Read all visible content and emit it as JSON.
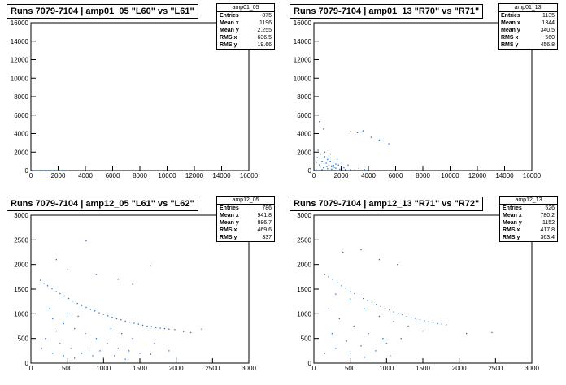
{
  "pads": [
    {
      "title": "Runs 7079-7104 | amp01_05 \"L60\" vs \"L61\"",
      "stats": {
        "name": "amp01_05",
        "rows": [
          {
            "label": "Entries",
            "value": "875"
          },
          {
            "label": "Mean x",
            "value": "1196"
          },
          {
            "label": "Mean y",
            "value": "2.255"
          },
          {
            "label": "RMS x",
            "value": "636.5"
          },
          {
            "label": "RMS y",
            "value": "19.66"
          }
        ]
      }
    },
    {
      "title": "Runs 7079-7104 | amp01_13 \"R70\" vs \"R71\"",
      "stats": {
        "name": "amp01_13",
        "rows": [
          {
            "label": "Entries",
            "value": "1135"
          },
          {
            "label": "Mean x",
            "value": "1344"
          },
          {
            "label": "Mean y",
            "value": "340.5"
          },
          {
            "label": "RMS x",
            "value": "560"
          },
          {
            "label": "RMS y",
            "value": "456.8"
          }
        ]
      }
    },
    {
      "title": "Runs 7079-7104 | amp12_05 \"L61\" vs \"L62\"",
      "stats": {
        "name": "amp12_05",
        "rows": [
          {
            "label": "Entries",
            "value": "786"
          },
          {
            "label": "Mean x",
            "value": "941.8"
          },
          {
            "label": "Mean y",
            "value": "886.7"
          },
          {
            "label": "RMS x",
            "value": "469.6"
          },
          {
            "label": "RMS y",
            "value": "337"
          }
        ]
      }
    },
    {
      "title": "Runs 7079-7104 | amp12_13 \"R71\" vs \"R72\"",
      "stats": {
        "name": "amp12_13",
        "rows": [
          {
            "label": "Entries",
            "value": "526"
          },
          {
            "label": "Mean x",
            "value": "780.2"
          },
          {
            "label": "Mean y",
            "value": "1152"
          },
          {
            "label": "RMS x",
            "value": "417.8"
          },
          {
            "label": "RMS y",
            "value": "363.4"
          }
        ]
      }
    }
  ],
  "chart_data": [
    {
      "type": "scatter",
      "title": "Runs 7079-7104 | amp01_05 \"L60\" vs \"L61\"",
      "xlim": [
        0,
        16000
      ],
      "ylim": [
        0,
        16000
      ],
      "xticks": [
        0,
        2000,
        4000,
        6000,
        8000,
        10000,
        12000,
        14000,
        16000
      ],
      "yticks": [
        0,
        2000,
        4000,
        6000,
        8000,
        10000,
        12000,
        14000,
        16000
      ],
      "marker_color": "#1f6fd0",
      "points": [
        [
          150,
          2
        ],
        [
          300,
          5
        ],
        [
          450,
          1
        ],
        [
          600,
          3
        ],
        [
          800,
          2
        ],
        [
          950,
          4
        ],
        [
          1100,
          0
        ],
        [
          1250,
          6
        ],
        [
          1400,
          3
        ],
        [
          1550,
          1
        ],
        [
          1700,
          5
        ],
        [
          1850,
          2
        ],
        [
          2000,
          4
        ],
        [
          2200,
          1
        ],
        [
          2400,
          3
        ],
        [
          2700,
          2
        ]
      ]
    },
    {
      "type": "scatter",
      "title": "Runs 7079-7104 | amp01_13 \"R70\" vs \"R71\"",
      "xlim": [
        0,
        16000
      ],
      "ylim": [
        0,
        16000
      ],
      "xticks": [
        0,
        2000,
        4000,
        6000,
        8000,
        10000,
        12000,
        14000,
        16000
      ],
      "yticks": [
        0,
        2000,
        4000,
        6000,
        8000,
        10000,
        12000,
        14000,
        16000
      ],
      "marker_color": "#1f6fd0",
      "points": [
        [
          400,
          5300
        ],
        [
          700,
          4500
        ],
        [
          2700,
          4200
        ],
        [
          3200,
          4100
        ],
        [
          3600,
          4300
        ],
        [
          4200,
          3600
        ],
        [
          5500,
          2900
        ],
        [
          4800,
          3300
        ],
        [
          300,
          2200
        ],
        [
          500,
          1800
        ],
        [
          800,
          1500
        ],
        [
          1000,
          1200
        ],
        [
          1200,
          1000
        ],
        [
          1400,
          900
        ],
        [
          1600,
          700
        ],
        [
          1800,
          600
        ],
        [
          2000,
          400
        ],
        [
          2200,
          300
        ],
        [
          600,
          1000
        ],
        [
          900,
          800
        ],
        [
          1100,
          600
        ],
        [
          1300,
          500
        ],
        [
          1500,
          350
        ],
        [
          700,
          300
        ],
        [
          1000,
          200
        ],
        [
          1300,
          150
        ],
        [
          1600,
          250
        ],
        [
          1900,
          150
        ],
        [
          2300,
          100
        ],
        [
          2700,
          80
        ],
        [
          3000,
          50
        ],
        [
          400,
          600
        ],
        [
          200,
          900
        ],
        [
          250,
          1400
        ],
        [
          1100,
          1600
        ],
        [
          2500,
          600
        ],
        [
          3300,
          250
        ],
        [
          3700,
          120
        ],
        [
          1700,
          1200
        ],
        [
          800,
          2000
        ],
        [
          1200,
          1800
        ],
        [
          500,
          400
        ],
        [
          150,
          150
        ],
        [
          600,
          100
        ],
        [
          950,
          450
        ],
        [
          1450,
          550
        ],
        [
          2050,
          800
        ]
      ]
    },
    {
      "type": "scatter",
      "title": "Runs 7079-7104 | amp12_05 \"L61\" vs \"L62\"",
      "xlim": [
        0,
        3000
      ],
      "ylim": [
        0,
        3000
      ],
      "xticks": [
        0,
        500,
        1000,
        1500,
        2000,
        2500,
        3000
      ],
      "yticks": [
        0,
        500,
        1000,
        1500,
        2000,
        2500,
        3000
      ],
      "marker_color": "#1f6fd0",
      "points": [
        [
          130,
          1680
        ],
        [
          180,
          1620
        ],
        [
          230,
          1570
        ],
        [
          290,
          1510
        ],
        [
          350,
          1450
        ],
        [
          400,
          1410
        ],
        [
          460,
          1360
        ],
        [
          520,
          1310
        ],
        [
          580,
          1260
        ],
        [
          640,
          1210
        ],
        [
          700,
          1170
        ],
        [
          760,
          1130
        ],
        [
          820,
          1090
        ],
        [
          880,
          1060
        ],
        [
          940,
          1020
        ],
        [
          1000,
          990
        ],
        [
          1060,
          960
        ],
        [
          1120,
          930
        ],
        [
          1180,
          900
        ],
        [
          1240,
          880
        ],
        [
          1300,
          850
        ],
        [
          1360,
          830
        ],
        [
          1420,
          810
        ],
        [
          1480,
          790
        ],
        [
          1540,
          770
        ],
        [
          1600,
          750
        ],
        [
          1660,
          740
        ],
        [
          1720,
          720
        ],
        [
          1780,
          710
        ],
        [
          1840,
          700
        ],
        [
          1900,
          690
        ],
        [
          1980,
          680
        ],
        [
          2100,
          640
        ],
        [
          2200,
          620
        ],
        [
          2350,
          690
        ],
        [
          760,
          2480
        ],
        [
          350,
          2100
        ],
        [
          500,
          1900
        ],
        [
          900,
          1800
        ],
        [
          1200,
          1700
        ],
        [
          1650,
          1970
        ],
        [
          1400,
          1600
        ],
        [
          300,
          900
        ],
        [
          450,
          800
        ],
        [
          600,
          700
        ],
        [
          750,
          600
        ],
        [
          900,
          500
        ],
        [
          1050,
          400
        ],
        [
          1200,
          300
        ],
        [
          1350,
          250
        ],
        [
          1500,
          200
        ],
        [
          1650,
          180
        ],
        [
          200,
          500
        ],
        [
          400,
          400
        ],
        [
          550,
          300
        ],
        [
          700,
          200
        ],
        [
          850,
          150
        ],
        [
          1000,
          100
        ],
        [
          250,
          1100
        ],
        [
          500,
          1000
        ],
        [
          650,
          950
        ],
        [
          1100,
          700
        ],
        [
          1250,
          600
        ],
        [
          1400,
          500
        ],
        [
          1700,
          400
        ],
        [
          350,
          650
        ],
        [
          800,
          300
        ],
        [
          150,
          300
        ],
        [
          300,
          200
        ],
        [
          450,
          150
        ],
        [
          600,
          100
        ],
        [
          950,
          250
        ],
        [
          1150,
          150
        ],
        [
          1300,
          80
        ],
        [
          1900,
          250
        ],
        [
          2000,
          100
        ]
      ]
    },
    {
      "type": "scatter",
      "title": "Runs 7079-7104 | amp12_13 \"R71\" vs \"R72\"",
      "xlim": [
        0,
        3000
      ],
      "ylim": [
        0,
        3000
      ],
      "xticks": [
        0,
        500,
        1000,
        1500,
        2000,
        2500,
        3000
      ],
      "yticks": [
        0,
        500,
        1000,
        1500,
        2000,
        2500,
        3000
      ],
      "marker_color": "#1f6fd0",
      "points": [
        [
          150,
          1800
        ],
        [
          200,
          1750
        ],
        [
          260,
          1690
        ],
        [
          320,
          1630
        ],
        [
          380,
          1570
        ],
        [
          440,
          1510
        ],
        [
          500,
          1460
        ],
        [
          560,
          1410
        ],
        [
          620,
          1360
        ],
        [
          680,
          1310
        ],
        [
          740,
          1270
        ],
        [
          800,
          1230
        ],
        [
          860,
          1190
        ],
        [
          920,
          1150
        ],
        [
          980,
          1110
        ],
        [
          1040,
          1080
        ],
        [
          1100,
          1040
        ],
        [
          1160,
          1010
        ],
        [
          1220,
          980
        ],
        [
          1280,
          950
        ],
        [
          1340,
          920
        ],
        [
          1400,
          900
        ],
        [
          1460,
          880
        ],
        [
          1520,
          860
        ],
        [
          1580,
          840
        ],
        [
          1640,
          820
        ],
        [
          1700,
          800
        ],
        [
          1760,
          790
        ],
        [
          1820,
          780
        ],
        [
          400,
          2250
        ],
        [
          650,
          2300
        ],
        [
          900,
          2100
        ],
        [
          1150,
          2000
        ],
        [
          300,
          1400
        ],
        [
          500,
          1300
        ],
        [
          700,
          1100
        ],
        [
          900,
          950
        ],
        [
          1100,
          850
        ],
        [
          1300,
          750
        ],
        [
          200,
          1100
        ],
        [
          350,
          900
        ],
        [
          550,
          750
        ],
        [
          750,
          600
        ],
        [
          950,
          500
        ],
        [
          250,
          600
        ],
        [
          450,
          450
        ],
        [
          650,
          350
        ],
        [
          850,
          250
        ],
        [
          1050,
          150
        ],
        [
          300,
          300
        ],
        [
          500,
          200
        ],
        [
          700,
          120
        ],
        [
          1500,
          650
        ],
        [
          2100,
          600
        ],
        [
          2450,
          620
        ],
        [
          1200,
          500
        ],
        [
          1000,
          400
        ],
        [
          150,
          200
        ]
      ]
    }
  ]
}
